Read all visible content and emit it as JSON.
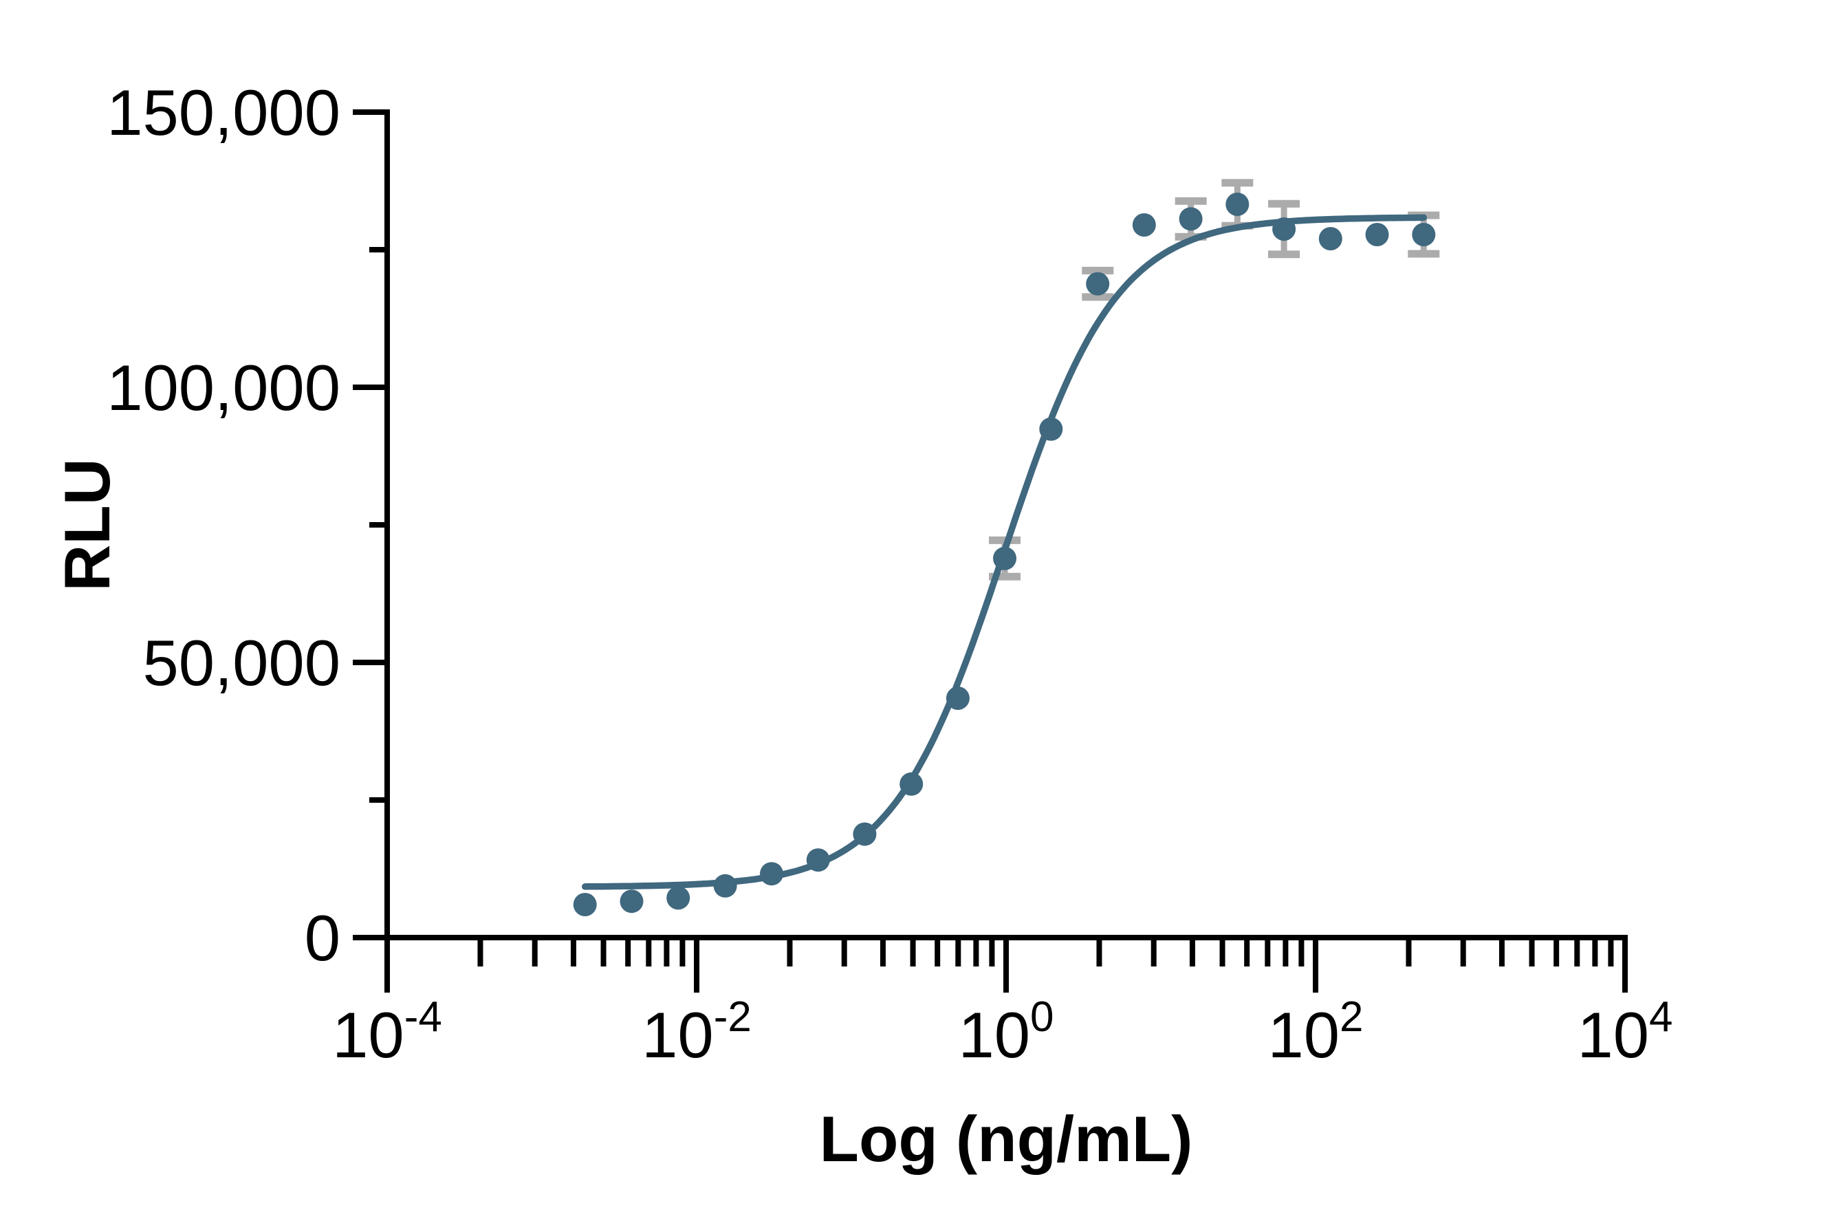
{
  "figure": {
    "background_color": "#ffffff",
    "axis_color": "#000000",
    "text_color": "#000000",
    "marker_color": "#40687f",
    "curve_color": "#40687f",
    "error_bar_color": "#ababab"
  },
  "chart_data": {
    "type": "scatter",
    "title": "",
    "xlabel": "Log (ng/mL)",
    "ylabel": "RLU",
    "x_scale": "log10",
    "x_range_exponents": [
      -4,
      4
    ],
    "x_major_ticks": [
      {
        "base": "10",
        "exp": "-4",
        "exponent": -4
      },
      {
        "base": "10",
        "exp": "-2",
        "exponent": -2
      },
      {
        "base": "10",
        "exp": "0",
        "exponent": 0
      },
      {
        "base": "10",
        "exp": "2",
        "exponent": 2
      },
      {
        "base": "10",
        "exp": "4",
        "exponent": 4
      }
    ],
    "x_minor_divisions": [
      2,
      3,
      4,
      5,
      6,
      7,
      8,
      9
    ],
    "ylim": [
      0,
      150000
    ],
    "y_major_ticks": [
      {
        "value": 0,
        "label": "0"
      },
      {
        "value": 50000,
        "label": "50,000"
      },
      {
        "value": 100000,
        "label": "100,000"
      },
      {
        "value": 150000,
        "label": "150,000"
      }
    ],
    "y_minor_step": 25000,
    "grid": false,
    "legend": "none",
    "points": [
      {
        "x": 0.0019,
        "y": 6000,
        "err": null
      },
      {
        "x": 0.0038,
        "y": 6600,
        "err": null
      },
      {
        "x": 0.0076,
        "y": 7200,
        "err": null
      },
      {
        "x": 0.0153,
        "y": 9400,
        "err": null
      },
      {
        "x": 0.0305,
        "y": 11600,
        "err": null
      },
      {
        "x": 0.061,
        "y": 14100,
        "err": null
      },
      {
        "x": 0.122,
        "y": 18800,
        "err": null
      },
      {
        "x": 0.244,
        "y": 27900,
        "err": null
      },
      {
        "x": 0.488,
        "y": 43500,
        "err": null
      },
      {
        "x": 0.98,
        "y": 68900,
        "err": 3300
      },
      {
        "x": 1.95,
        "y": 92400,
        "err": null
      },
      {
        "x": 3.91,
        "y": 118800,
        "err": 2400
      },
      {
        "x": 7.81,
        "y": 129500,
        "err": null
      },
      {
        "x": 15.63,
        "y": 130600,
        "err": 3250
      },
      {
        "x": 31.25,
        "y": 133250,
        "err": 3900
      },
      {
        "x": 62.5,
        "y": 128750,
        "err": 4600
      },
      {
        "x": 125,
        "y": 127000,
        "err": null
      },
      {
        "x": 250,
        "y": 127750,
        "err": null
      },
      {
        "x": 500,
        "y": 127750,
        "err": 3500
      }
    ],
    "fit_curve": {
      "model": "4PL",
      "bottom": 9200,
      "top": 130900,
      "ec50": 0.97,
      "hill": 1.2,
      "x_start": 0.0019,
      "x_end": 500
    }
  }
}
